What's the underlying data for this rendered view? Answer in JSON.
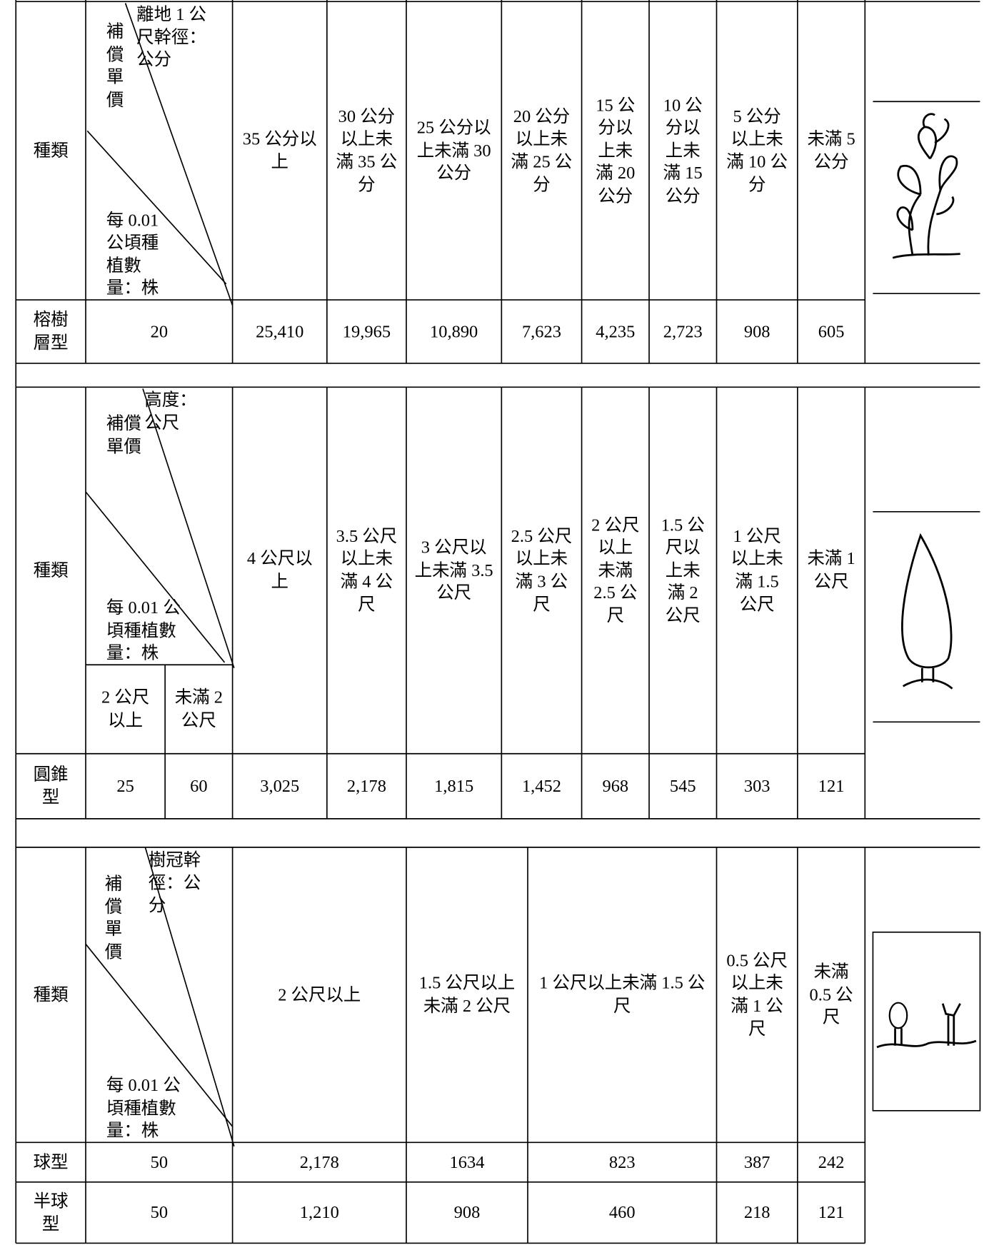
{
  "sections": [
    {
      "kind_label": "種類",
      "axis_label": "離地 1 公尺幹徑：公分",
      "price_label": "補償單價",
      "density_label": "每 0.01 公頃種植數量：株",
      "columns": [
        "35 公分以上",
        "30 公分以上未滿 35 公分",
        "25 公分以上未滿 30 公分",
        "20 公分以上未滿 25 公分",
        "15 公分以上未滿 20 公分",
        "10 公分以上未滿 15 公分",
        "5 公分以上未滿 10 公分",
        "未滿 5 公分"
      ],
      "rows": [
        {
          "name": "榕樹層型",
          "density": [
            "20"
          ],
          "prices": [
            "25,410",
            "19,965",
            "10,890",
            "7,623",
            "4,235",
            "2,723",
            "908",
            "605"
          ]
        }
      ]
    },
    {
      "kind_label": "種類",
      "axis_label": "高度：公尺",
      "price_label": "補償單價",
      "density_label": "每 0.01 公頃種植數量：株",
      "density_columns": [
        "2 公尺以上",
        "未滿 2 公尺"
      ],
      "columns": [
        "4 公尺以上",
        "3.5 公尺以上未滿 4 公尺",
        "3 公尺以上未滿 3.5 公尺",
        "2.5 公尺以上未滿 3 公尺",
        "2 公尺以上未滿 2.5 公尺",
        "1.5 公尺以上未滿 2 公尺",
        "1 公尺以上未滿 1.5 公尺",
        "未滿 1 公尺"
      ],
      "rows": [
        {
          "name": "圓錐型",
          "density": [
            "25",
            "60"
          ],
          "prices": [
            "3,025",
            "2,178",
            "1,815",
            "1,452",
            "968",
            "545",
            "303",
            "121"
          ]
        }
      ]
    },
    {
      "kind_label": "種類",
      "axis_label": "樹冠幹徑：公分",
      "price_label": "補償單價",
      "density_label": "每 0.01 公頃種植數量：株",
      "columns": [
        "2 公尺以上",
        "1.5 公尺以上未滿 2 公尺",
        "1 公尺以上未滿 1.5 公尺",
        "0.5 公尺以上未滿 1 公尺",
        "未滿 0.5 公尺"
      ],
      "rows": [
        {
          "name": "球型",
          "density": [
            "50"
          ],
          "prices": [
            "2,178",
            "1634",
            "823",
            "387",
            "242"
          ]
        },
        {
          "name": "半球型",
          "density": [
            "50"
          ],
          "prices": [
            "1,210",
            "908",
            "460",
            "218",
            "121"
          ]
        }
      ]
    }
  ]
}
